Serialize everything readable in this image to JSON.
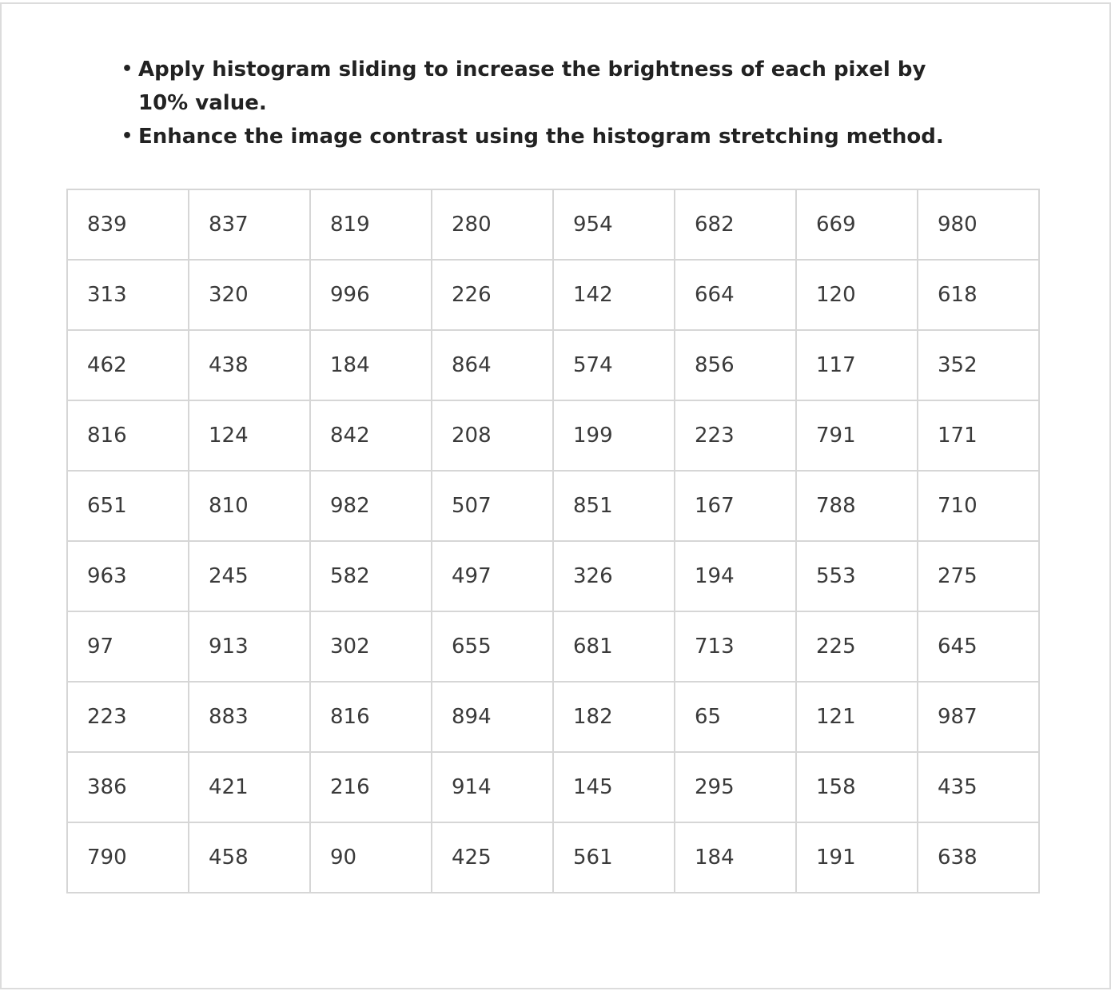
{
  "instructions": [
    "Apply histogram sliding to increase the brightness of each pixel by 10% value.",
    "Enhance the image contrast using the histogram stretching method."
  ],
  "bullet": "•",
  "matrix": [
    [
      "839",
      "837",
      "819",
      "280",
      "954",
      "682",
      "669",
      "980"
    ],
    [
      "313",
      "320",
      "996",
      "226",
      "142",
      "664",
      "120",
      "618"
    ],
    [
      "462",
      "438",
      "184",
      "864",
      "574",
      "856",
      "117",
      "352"
    ],
    [
      "816",
      "124",
      "842",
      "208",
      "199",
      "223",
      "791",
      "171"
    ],
    [
      "651",
      "810",
      "982",
      "507",
      "851",
      "167",
      "788",
      "710"
    ],
    [
      "963",
      "245",
      "582",
      "497",
      "326",
      "194",
      "553",
      "275"
    ],
    [
      "97",
      "913",
      "302",
      "655",
      "681",
      "713",
      "225",
      "645"
    ],
    [
      "223",
      "883",
      "816",
      "894",
      "182",
      "65",
      "121",
      "987"
    ],
    [
      "386",
      "421",
      "216",
      "914",
      "145",
      "295",
      "158",
      "435"
    ],
    [
      "790",
      "458",
      "90",
      "425",
      "561",
      "184",
      "191",
      "638"
    ]
  ]
}
